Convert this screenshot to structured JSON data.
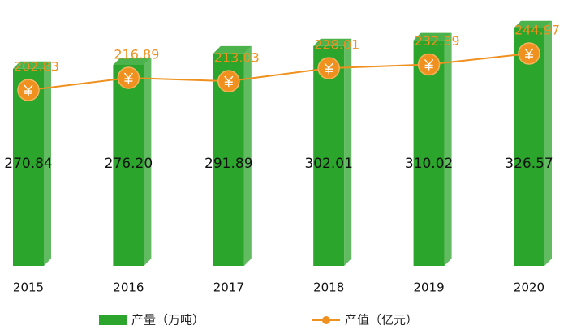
{
  "chart_data": {
    "type": "bar",
    "categories": [
      "2015",
      "2016",
      "2017",
      "2018",
      "2019",
      "2020"
    ],
    "series": [
      {
        "name": "产量（万吨）",
        "color": "#2ca52c",
        "values": [
          270.84,
          276.2,
          291.89,
          302.01,
          310.02,
          326.57
        ],
        "value_labels": [
          "270.84",
          "276.20",
          "291.89",
          "302.01",
          "310.02",
          "326.57"
        ]
      },
      {
        "name": "产值（亿元）",
        "type": "line",
        "axis": "y2",
        "color": "#f0901e",
        "values": [
          202.83,
          216.89,
          213.03,
          228.01,
          232.39,
          244.97
        ]
      }
    ],
    "ylim": [
      0,
      343
    ],
    "y2lim": [
      0,
      288
    ],
    "legend": "bottom"
  }
}
